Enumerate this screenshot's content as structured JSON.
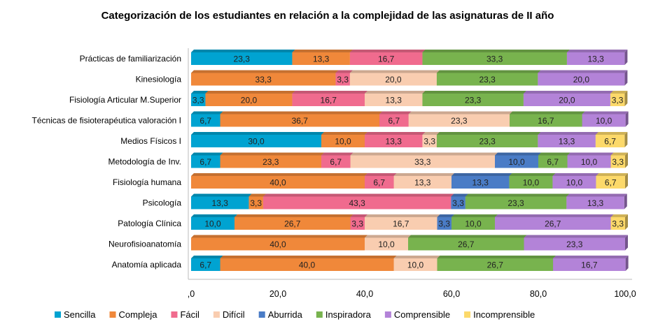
{
  "chart_data": {
    "type": "bar",
    "orientation": "horizontal",
    "stacked": true,
    "title": "Categorización de los estudiantes en relación a la complejidad de las asignaturas de II año",
    "categories": [
      "Prácticas de familiarización",
      "Kinesiología",
      "Fisiología Articular M.Superior",
      "Técnicas de  fisioterapéutica valoración I",
      "Medios Físicos I",
      "Metodología de Inv.",
      "Fisiología humana",
      "Psicología",
      "Patología Clínica",
      "Neurofisioanatomía",
      "Anatomía aplicada"
    ],
    "series": [
      {
        "name": "Sencilla",
        "color": "#00a3d1",
        "values": [
          23.3,
          0,
          3.3,
          6.7,
          30.0,
          6.7,
          0,
          13.3,
          10.0,
          0,
          6.7
        ]
      },
      {
        "name": "Compleja",
        "color": "#f0883a",
        "values": [
          13.3,
          33.3,
          20.0,
          36.7,
          10.0,
          23.3,
          40.0,
          3.3,
          26.7,
          40.0,
          40.0
        ]
      },
      {
        "name": "Fácil",
        "color": "#f06b8e",
        "values": [
          16.7,
          3.3,
          16.7,
          6.7,
          13.3,
          6.7,
          6.7,
          43.3,
          3.3,
          0,
          0
        ]
      },
      {
        "name": "Difícil",
        "color": "#f9cdb0",
        "values": [
          0,
          20.0,
          13.3,
          23.3,
          3.3,
          33.3,
          13.3,
          0,
          16.7,
          10.0,
          10.0
        ]
      },
      {
        "name": "Aburrida",
        "color": "#4a7cc6",
        "values": [
          0,
          0,
          0,
          0,
          0,
          10.0,
          13.3,
          3.3,
          3.3,
          0,
          0
        ]
      },
      {
        "name": "Inspiradora",
        "color": "#78b34e",
        "values": [
          33.3,
          23.3,
          23.3,
          16.7,
          23.3,
          6.7,
          10.0,
          23.3,
          10.0,
          26.7,
          26.7
        ]
      },
      {
        "name": "Comprensible",
        "color": "#b383d8",
        "values": [
          13.3,
          20.0,
          20.0,
          10.0,
          13.3,
          10.0,
          10.0,
          13.3,
          26.7,
          23.3,
          16.7
        ]
      },
      {
        "name": "Incomprensible",
        "color": "#fcd96a",
        "values": [
          0,
          0,
          3.3,
          0,
          6.7,
          3.3,
          6.7,
          0,
          3.3,
          0,
          0
        ]
      }
    ],
    "xlim": [
      0,
      100
    ],
    "xticks": [
      0,
      20,
      40,
      60,
      80,
      100
    ],
    "tick_labels": [
      ",0",
      "20,0",
      "40,0",
      "60,0",
      "80,0",
      "100,0"
    ],
    "data_labels": true,
    "grid": false,
    "legend": "bottom",
    "xlabel": "",
    "ylabel": ""
  }
}
